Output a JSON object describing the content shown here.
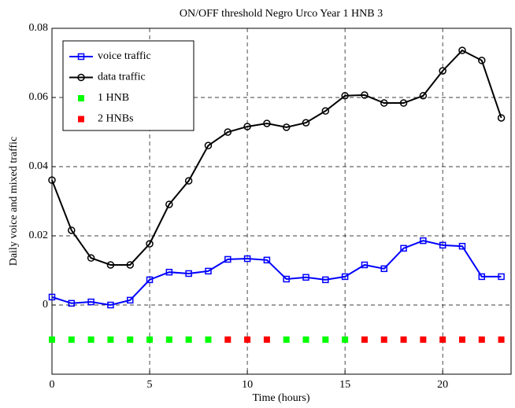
{
  "chart_data": {
    "type": "line",
    "title": "ON/OFF threshold Negro Urco Year 1 HNB 3",
    "xlabel": "Time (hours)",
    "ylabel": "Daily voice and mixed traffic",
    "xlim": [
      0,
      23.5
    ],
    "xticks": [
      0,
      5,
      10,
      15,
      20
    ],
    "ylim": [
      -0.02,
      0.08
    ],
    "yticks": [
      0,
      0.02,
      0.04,
      0.06,
      0.08
    ],
    "grid": true,
    "legend": "upper-left",
    "series": [
      {
        "name": "voice traffic",
        "color": "#0000ff",
        "marker": "square",
        "line": true,
        "x": [
          0,
          1,
          2,
          3,
          4,
          5,
          6,
          7,
          8,
          9,
          10,
          11,
          12,
          13,
          14,
          15,
          16,
          17,
          18,
          19,
          20,
          21,
          22,
          23
        ],
        "values": [
          0.0023,
          0.0005,
          0.0009,
          0.0,
          0.0014,
          0.0073,
          0.0095,
          0.0091,
          0.0098,
          0.0132,
          0.0134,
          0.013,
          0.0075,
          0.008,
          0.0073,
          0.0082,
          0.0116,
          0.0105,
          0.0164,
          0.0186,
          0.0173,
          0.017,
          0.0082,
          0.0082
        ]
      },
      {
        "name": "data traffic",
        "color": "#000000",
        "marker": "circle",
        "line": true,
        "x": [
          0,
          1,
          2,
          3,
          4,
          5,
          6,
          7,
          8,
          9,
          10,
          11,
          12,
          13,
          14,
          15,
          16,
          17,
          18,
          19,
          20,
          21,
          22,
          23
        ],
        "values": [
          0.0361,
          0.0216,
          0.0136,
          0.0116,
          0.0116,
          0.0177,
          0.0291,
          0.0359,
          0.0461,
          0.05,
          0.0516,
          0.0525,
          0.0514,
          0.0527,
          0.0561,
          0.0605,
          0.0607,
          0.0584,
          0.0584,
          0.0605,
          0.0677,
          0.0736,
          0.0707,
          0.0541
        ]
      },
      {
        "name": "1 HNB",
        "color": "#00ff00",
        "marker": "filled-square",
        "line": false,
        "x": [
          0,
          1,
          2,
          3,
          4,
          5,
          6,
          7,
          8,
          12,
          13,
          14,
          15
        ],
        "values": [
          -0.01,
          -0.01,
          -0.01,
          -0.01,
          -0.01,
          -0.01,
          -0.01,
          -0.01,
          -0.01,
          -0.01,
          -0.01,
          -0.01,
          -0.01
        ]
      },
      {
        "name": "2 HNBs",
        "color": "#ff0000",
        "marker": "filled-square",
        "line": false,
        "x": [
          9,
          10,
          11,
          16,
          17,
          18,
          19,
          20,
          21,
          22,
          23
        ],
        "values": [
          -0.01,
          -0.01,
          -0.01,
          -0.01,
          -0.01,
          -0.01,
          -0.01,
          -0.01,
          -0.01,
          -0.01,
          -0.01
        ]
      }
    ]
  }
}
